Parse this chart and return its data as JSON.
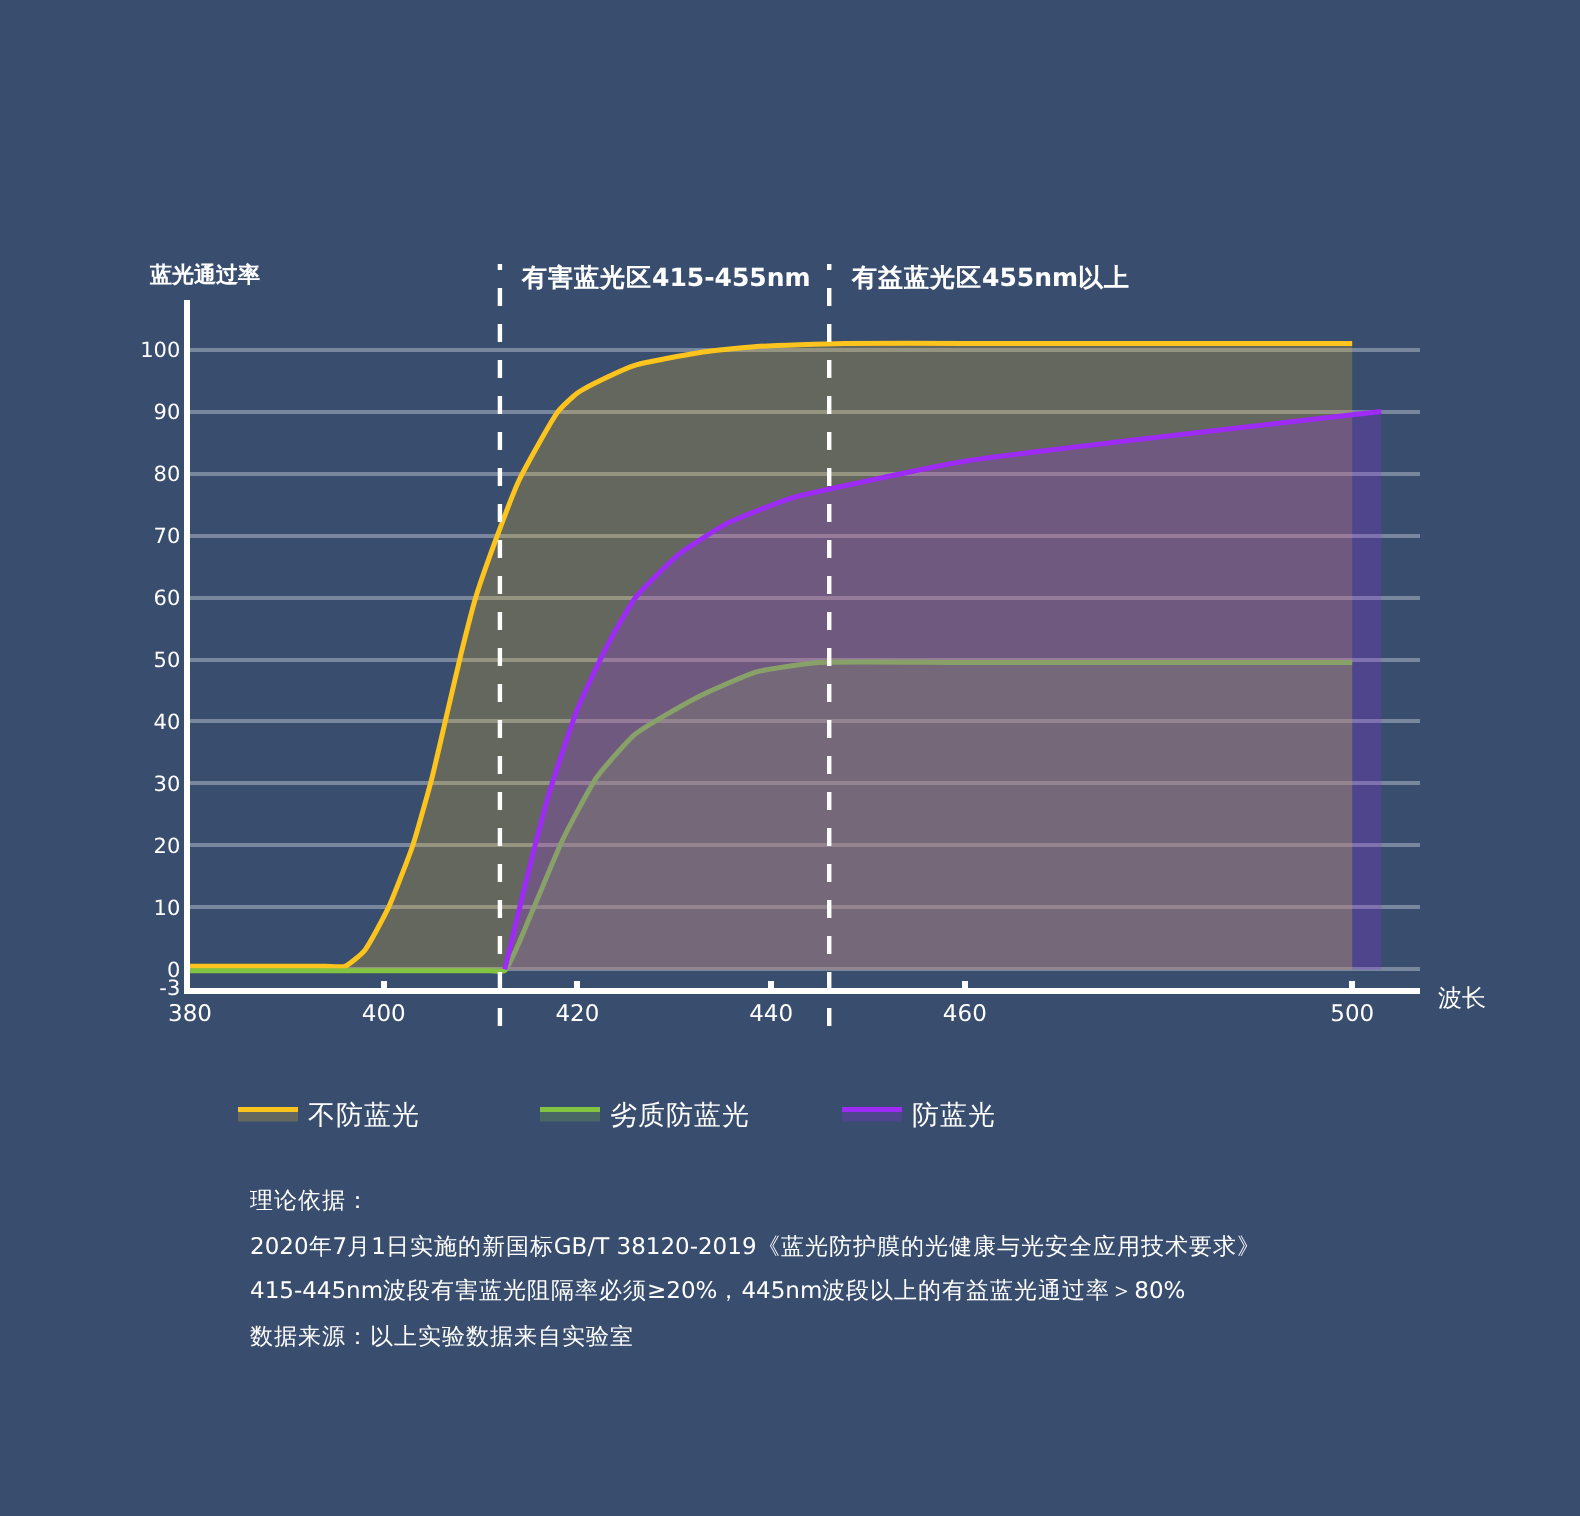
{
  "chart_data": {
    "type": "area",
    "xlabel": "波长",
    "ylabel": "蓝光通过率",
    "xlim": [
      380,
      507
    ],
    "ylim": [
      -3,
      108
    ],
    "xticks": [
      380,
      400,
      420,
      440,
      460,
      500
    ],
    "yticks": [
      -3,
      0,
      10,
      20,
      30,
      40,
      50,
      60,
      70,
      80,
      90,
      100
    ],
    "grid": "y",
    "legend": "bottom",
    "series": [
      {
        "name": "不防蓝光",
        "color": "#fdc41e",
        "x": [
          380,
          388,
          394,
          396,
          398,
          400.5,
          403,
          405,
          406.5,
          408,
          409.5,
          411.5,
          414,
          418,
          420,
          423,
          426,
          432.5,
          438.5,
          447.5,
          460,
          500
        ],
        "values": [
          0.5,
          0.5,
          0.5,
          0.5,
          3,
          10,
          20,
          31,
          41,
          51,
          60,
          69,
          79,
          90,
          93,
          95.5,
          97.5,
          99.5,
          100.5,
          101,
          101,
          101
        ]
      },
      {
        "name": "劣质防蓝光",
        "color": "#82c341",
        "x": [
          380,
          390,
          400,
          408,
          411,
          412.5,
          415.5,
          418.5,
          422,
          426,
          432.5,
          438.5,
          445,
          460,
          500
        ],
        "values": [
          -0.2,
          -0.2,
          -0.2,
          -0.2,
          -0.2,
          -0.2,
          10,
          21,
          31,
          38,
          44,
          48,
          49.5,
          49.5,
          49.5
        ]
      },
      {
        "name": "防蓝光",
        "color": "#9d2bf5",
        "x": [
          412.5,
          414.5,
          417,
          420,
          423,
          426,
          430.5,
          435.5,
          442,
          447.5,
          460,
          503
        ],
        "values": [
          0,
          13,
          28,
          42,
          52,
          60,
          67,
          72,
          76,
          78,
          82,
          90
        ]
      }
    ],
    "ref_lines": [
      {
        "axis": "x",
        "value": 412,
        "label": "有害蓝光区415-455nm",
        "color": "#ffffff",
        "line_style": "dashed"
      },
      {
        "axis": "x",
        "value": 446,
        "label": "有益蓝光区455nm以上",
        "color": "#ffffff",
        "line_style": "dashed"
      }
    ],
    "annotations": [
      "理论依据：",
      "2020年7月1日实施的新国标GB/T 38120-2019《蓝光防护膜的光健康与光安全应用技术要求》",
      "415-445nm波段有害蓝光阻隔率必须≥20%，445nm波段以上的有益蓝光通过率＞80%",
      "数据来源：以上实验数据来自实验室"
    ]
  }
}
